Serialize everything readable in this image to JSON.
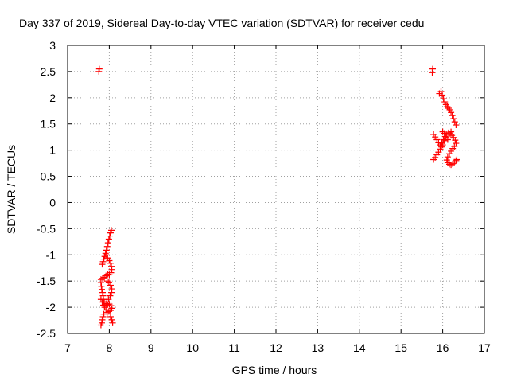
{
  "chart_data": {
    "type": "scatter",
    "title": "Day 337 of 2019, Sidereal Day-to-day VTEC variation (SDTVAR) for receiver cedu",
    "xlabel": "GPS time / hours",
    "ylabel": "SDTVAR / TECUs",
    "xlim": [
      7,
      17
    ],
    "ylim": [
      -2.5,
      3
    ],
    "xticks": [
      "7",
      "8",
      "9",
      "10",
      "11",
      "12",
      "13",
      "14",
      "15",
      "16",
      "17"
    ],
    "yticks": [
      "-2.5",
      "-2",
      "-1.5",
      "-1",
      "-0.5",
      "0",
      "0.5",
      "1",
      "1.5",
      "2",
      "2.5",
      "3"
    ],
    "grid": true,
    "marker": "plus",
    "series": [
      {
        "name": "SDTVAR",
        "color": "#ff0000",
        "points": [
          [
            8.05,
            -0.53
          ],
          [
            8.03,
            -0.58
          ],
          [
            8.01,
            -0.64
          ],
          [
            7.99,
            -0.7
          ],
          [
            7.97,
            -0.77
          ],
          [
            7.95,
            -0.84
          ],
          [
            7.93,
            -0.91
          ],
          [
            7.91,
            -0.97
          ],
          [
            7.89,
            -1.03
          ],
          [
            7.87,
            -1.08
          ],
          [
            7.85,
            -1.13
          ],
          [
            7.83,
            -1.18
          ],
          [
            7.92,
            -1.0
          ],
          [
            7.96,
            -1.06
          ],
          [
            8.0,
            -1.11
          ],
          [
            8.03,
            -1.16
          ],
          [
            8.05,
            -1.22
          ],
          [
            8.06,
            -1.28
          ],
          [
            8.04,
            -1.34
          ],
          [
            8.0,
            -1.38
          ],
          [
            7.96,
            -1.37
          ],
          [
            7.92,
            -1.4
          ],
          [
            7.88,
            -1.43
          ],
          [
            7.84,
            -1.45
          ],
          [
            7.8,
            -1.47
          ],
          [
            7.8,
            -1.53
          ],
          [
            7.81,
            -1.6
          ],
          [
            7.82,
            -1.66
          ],
          [
            7.84,
            -1.72
          ],
          [
            7.85,
            -1.78
          ],
          [
            7.86,
            -1.85
          ],
          [
            7.88,
            -1.9
          ],
          [
            7.92,
            -1.93
          ],
          [
            7.96,
            -1.95
          ],
          [
            8.0,
            -1.94
          ],
          [
            8.04,
            -1.97
          ],
          [
            8.06,
            -2.02
          ],
          [
            8.03,
            -2.06
          ],
          [
            7.99,
            -2.08
          ],
          [
            7.95,
            -2.1
          ],
          [
            7.92,
            -2.05
          ],
          [
            7.89,
            -2.0
          ],
          [
            7.86,
            -1.96
          ],
          [
            7.83,
            -1.9
          ],
          [
            7.8,
            -1.85
          ],
          [
            7.87,
            -2.13
          ],
          [
            7.85,
            -2.18
          ],
          [
            7.83,
            -2.24
          ],
          [
            7.82,
            -2.3
          ],
          [
            7.8,
            -2.34
          ],
          [
            8.03,
            -2.18
          ],
          [
            8.06,
            -2.24
          ],
          [
            8.08,
            -2.3
          ],
          [
            7.98,
            -1.85
          ],
          [
            8.02,
            -1.78
          ],
          [
            8.05,
            -1.72
          ],
          [
            8.06,
            -1.65
          ],
          [
            8.03,
            -1.58
          ],
          [
            7.99,
            -1.52
          ],
          [
            7.95,
            -1.5
          ],
          [
            7.76,
            2.55
          ],
          [
            7.75,
            2.5
          ],
          [
            15.76,
            2.55
          ],
          [
            15.75,
            2.48
          ],
          [
            15.92,
            2.08
          ],
          [
            15.96,
            2.12
          ],
          [
            15.99,
            2.05
          ],
          [
            16.02,
            1.98
          ],
          [
            16.05,
            1.92
          ],
          [
            16.08,
            1.87
          ],
          [
            16.11,
            1.83
          ],
          [
            16.14,
            1.8
          ],
          [
            16.17,
            1.77
          ],
          [
            16.2,
            1.72
          ],
          [
            16.23,
            1.66
          ],
          [
            16.26,
            1.6
          ],
          [
            16.29,
            1.54
          ],
          [
            16.32,
            1.48
          ],
          [
            15.78,
            1.3
          ],
          [
            15.82,
            1.25
          ],
          [
            15.86,
            1.2
          ],
          [
            15.9,
            1.14
          ],
          [
            15.94,
            1.1
          ],
          [
            15.98,
            1.13
          ],
          [
            16.02,
            1.2
          ],
          [
            16.06,
            1.26
          ],
          [
            16.1,
            1.3
          ],
          [
            16.14,
            1.33
          ],
          [
            16.18,
            1.31
          ],
          [
            16.22,
            1.28
          ],
          [
            16.26,
            1.24
          ],
          [
            16.3,
            1.19
          ],
          [
            16.32,
            1.13
          ],
          [
            16.28,
            1.07
          ],
          [
            16.24,
            1.03
          ],
          [
            16.2,
            0.98
          ],
          [
            16.16,
            0.93
          ],
          [
            16.12,
            0.87
          ],
          [
            16.1,
            0.81
          ],
          [
            16.12,
            0.76
          ],
          [
            16.16,
            0.73
          ],
          [
            16.2,
            0.72
          ],
          [
            16.24,
            0.74
          ],
          [
            16.28,
            0.77
          ],
          [
            16.32,
            0.8
          ],
          [
            16.34,
            0.82
          ],
          [
            15.78,
            0.82
          ],
          [
            15.82,
            0.86
          ],
          [
            15.86,
            0.91
          ],
          [
            15.9,
            0.96
          ],
          [
            15.94,
            1.02
          ],
          [
            15.97,
            1.06
          ],
          [
            16.0,
            1.1
          ],
          [
            16.04,
            1.18
          ],
          [
            16.08,
            1.24
          ],
          [
            16.12,
            1.2
          ],
          [
            16.0,
            1.35
          ],
          [
            16.04,
            1.32
          ],
          [
            16.2,
            1.35
          ]
        ]
      }
    ]
  }
}
